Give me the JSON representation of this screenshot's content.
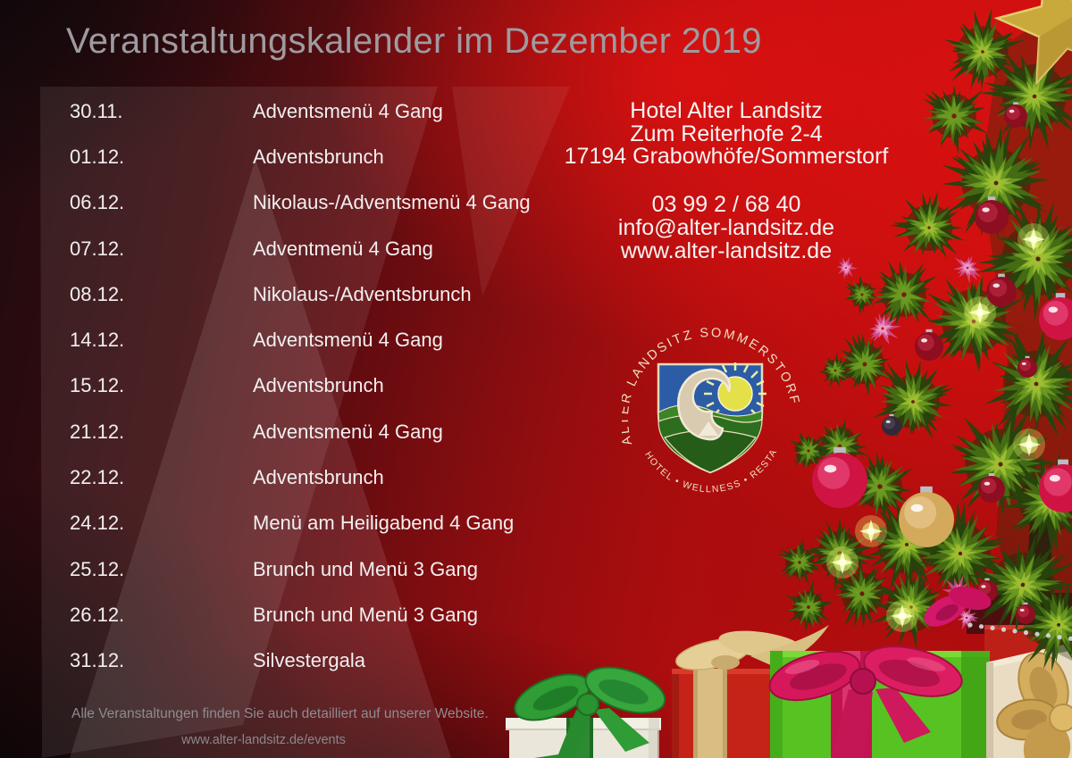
{
  "title": "Veranstaltungskalender im Dezember 2019",
  "events": [
    {
      "date": "30.11.",
      "name": "Adventsmenü 4 Gang"
    },
    {
      "date": "01.12.",
      "name": "Adventsbrunch"
    },
    {
      "date": "06.12.",
      "name": "Nikolaus-/Adventsmenü 4 Gang"
    },
    {
      "date": "07.12.",
      "name": "Adventmenü 4 Gang"
    },
    {
      "date": "08.12.",
      "name": "Nikolaus-/Adventsbrunch"
    },
    {
      "date": "14.12.",
      "name": "Adventsmenü 4 Gang"
    },
    {
      "date": "15.12.",
      "name": "Adventsbrunch"
    },
    {
      "date": "21.12.",
      "name": "Adventsmenü 4 Gang"
    },
    {
      "date": "22.12.",
      "name": "Adventsbrunch"
    },
    {
      "date": "24.12.",
      "name": "Menü am Heiligabend 4 Gang"
    },
    {
      "date": "25.12.",
      "name": "Brunch und Menü 3 Gang"
    },
    {
      "date": "26.12.",
      "name": "Brunch und Menü 3 Gang"
    },
    {
      "date": "31.12.",
      "name": "Silvestergala"
    }
  ],
  "contact": {
    "name": "Hotel Alter Landsitz",
    "street": "Zum Reiterhofe 2-4",
    "city": "17194 Grabowhöfe/Sommerstorf",
    "phone": "03 99 2 / 68 40",
    "email": "info@alter-landsitz.de",
    "website": "www.alter-landsitz.de"
  },
  "logo": {
    "arc_top": "ALTER LANDSITZ SOMMERSTORF",
    "arc_bottom": "HOTEL • WELLNESS • RESTAURANT"
  },
  "footer": {
    "note": "Alle Veranstaltungen finden Sie auch detailliert auf unserer Website.",
    "events_url": "www.alter-landsitz.de/events"
  },
  "colors": {
    "bright_red": "#d21011",
    "deep_red": "#8c0d10",
    "dark_corner": "#120a0d",
    "title_gray": "#9e9ba0",
    "body_text": "#f2eff0",
    "footer_gray": "#8e8b8f",
    "logo_cream": "#ecdfc2",
    "logo_blue": "#2c5ca5",
    "logo_green": "#2c6e1e",
    "tree_green": "#446d14",
    "bauble_red": "#8c0e20",
    "gift_green": "#57c322",
    "ribbon_magenta": "#c21450",
    "bow_gold": "#cfa85a",
    "gift_white": "#eae6da",
    "gift_red": "#c52318"
  }
}
